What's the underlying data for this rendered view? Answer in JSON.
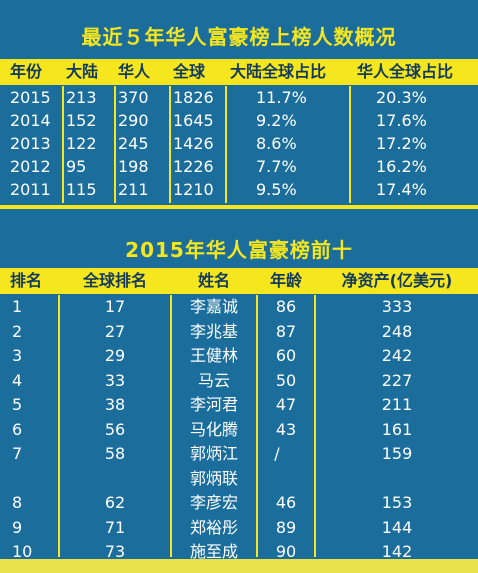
{
  "colors": {
    "background": "#1b6e9c",
    "accent": "#f5e61e",
    "header_text": "#123a5c",
    "body_text": "#ffffff"
  },
  "table1": {
    "title": "最近５年华人富豪榜上榜人数概况",
    "headers": [
      "年份",
      "大陆",
      "华人",
      "全球",
      "大陆全球占比",
      "华人全球占比"
    ],
    "rows": [
      [
        "2015",
        "213",
        "370",
        "1826",
        "11.7%",
        "20.3%"
      ],
      [
        "2014",
        "152",
        "290",
        "1645",
        "9.2%",
        "17.6%"
      ],
      [
        "2013",
        "122",
        "245",
        "1426",
        "8.6%",
        "17.2%"
      ],
      [
        "2012",
        "95",
        "198",
        "1226",
        "7.7%",
        "16.2%"
      ],
      [
        "2011",
        "115",
        "211",
        "1210",
        "9.5%",
        "17.4%"
      ]
    ]
  },
  "table2": {
    "title": "2015年华人富豪榜前十",
    "headers": [
      "排名",
      "全球排名",
      "姓名",
      "年龄",
      "净资产(亿美元)"
    ],
    "rows": [
      [
        "1",
        "17",
        "李嘉诚",
        "86",
        "333"
      ],
      [
        "2",
        "27",
        "李兆基",
        "87",
        "248"
      ],
      [
        "3",
        "29",
        "王健林",
        "60",
        "242"
      ],
      [
        "4",
        "33",
        "马云",
        "50",
        "227"
      ],
      [
        "5",
        "38",
        "李河君",
        "47",
        "211"
      ],
      [
        "6",
        "56",
        "马化腾",
        "43",
        "161"
      ],
      [
        "7",
        "58",
        "郭炳江",
        "/",
        "159"
      ],
      [
        "",
        "",
        "郭炳联",
        "",
        ""
      ],
      [
        "8",
        "62",
        "李彦宏",
        "46",
        "153"
      ],
      [
        "9",
        "71",
        "郑裕彤",
        "89",
        "144"
      ],
      [
        "10",
        "73",
        "施至成",
        "90",
        "142"
      ]
    ]
  }
}
